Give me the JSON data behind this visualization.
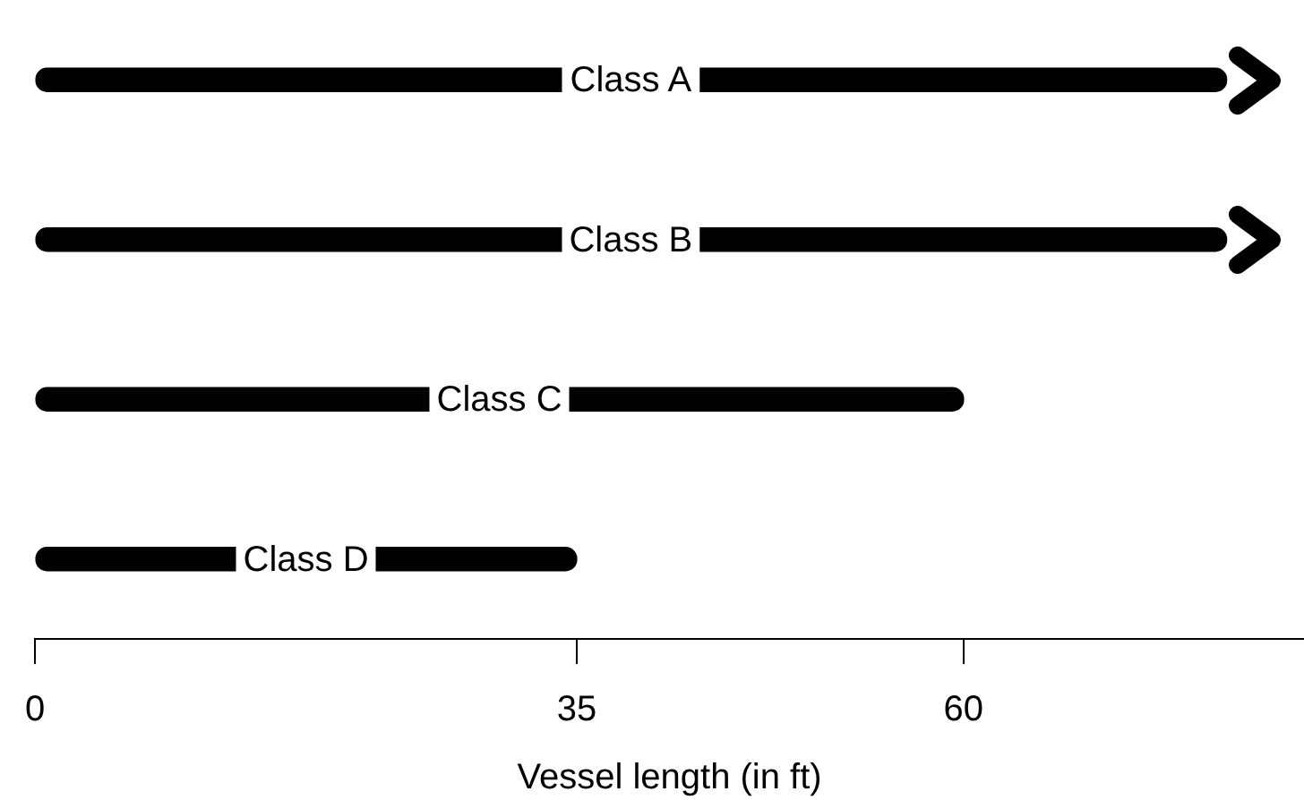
{
  "chart_data": {
    "type": "bar",
    "orientation": "horizontal",
    "categories": [
      "Class A",
      "Class B",
      "Class C",
      "Class D"
    ],
    "values": [
      77,
      77,
      60,
      35
    ],
    "color": "#000000",
    "xlim": [
      0,
      82
    ],
    "xticks": [
      0,
      35,
      60
    ],
    "xlabel": "Vessel length (in ft)",
    "grid": false,
    "legend": false
  }
}
